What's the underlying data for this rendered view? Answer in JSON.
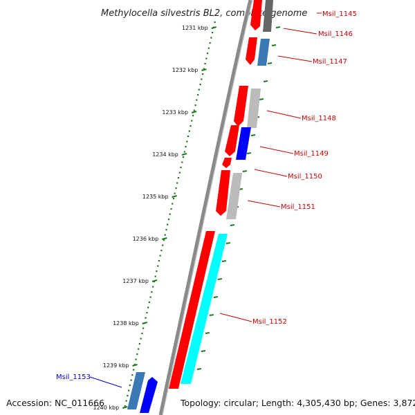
{
  "title": "Methylocella silvestris BL2, complete genome",
  "accession": "Accession: NC_011666",
  "topology": "Topology: circular; Length: 4,305,430 bp; Genes: 3,872",
  "kbp_labels": [
    "1231 kbp",
    "1232 kbp",
    "1233 kbp",
    "1234 kbp",
    "1235 kbp",
    "1236 kbp",
    "1237 kbp",
    "1238 kbp",
    "1239 kbp",
    "1240 kbp"
  ],
  "colors": {
    "gene_red": "#ff0000",
    "gene_blue": "#0000ff",
    "gene_cyan": "#00ffff",
    "gene_steelblue": "#3a79b6",
    "gene_gray": "#bbbbbb",
    "gene_darkgray": "#666666",
    "label_red": "#cc0000",
    "label_blue": "#0000cc",
    "backbone": "#888888",
    "tick_green": "#1a7a1a"
  },
  "genes": [
    {
      "name": "Msil_1145",
      "color": "red"
    },
    {
      "name": "Msil_1146",
      "color": "red"
    },
    {
      "name": "Msil_1147",
      "color": "red"
    },
    {
      "name": "Msil_1148",
      "color": "red"
    },
    {
      "name": "Msil_1149",
      "color": "red"
    },
    {
      "name": "Msil_1150",
      "color": "red"
    },
    {
      "name": "Msil_1151",
      "color": "red"
    },
    {
      "name": "Msil_1152",
      "color": "red"
    },
    {
      "name": "Msil_1153",
      "color": "blue"
    }
  ]
}
